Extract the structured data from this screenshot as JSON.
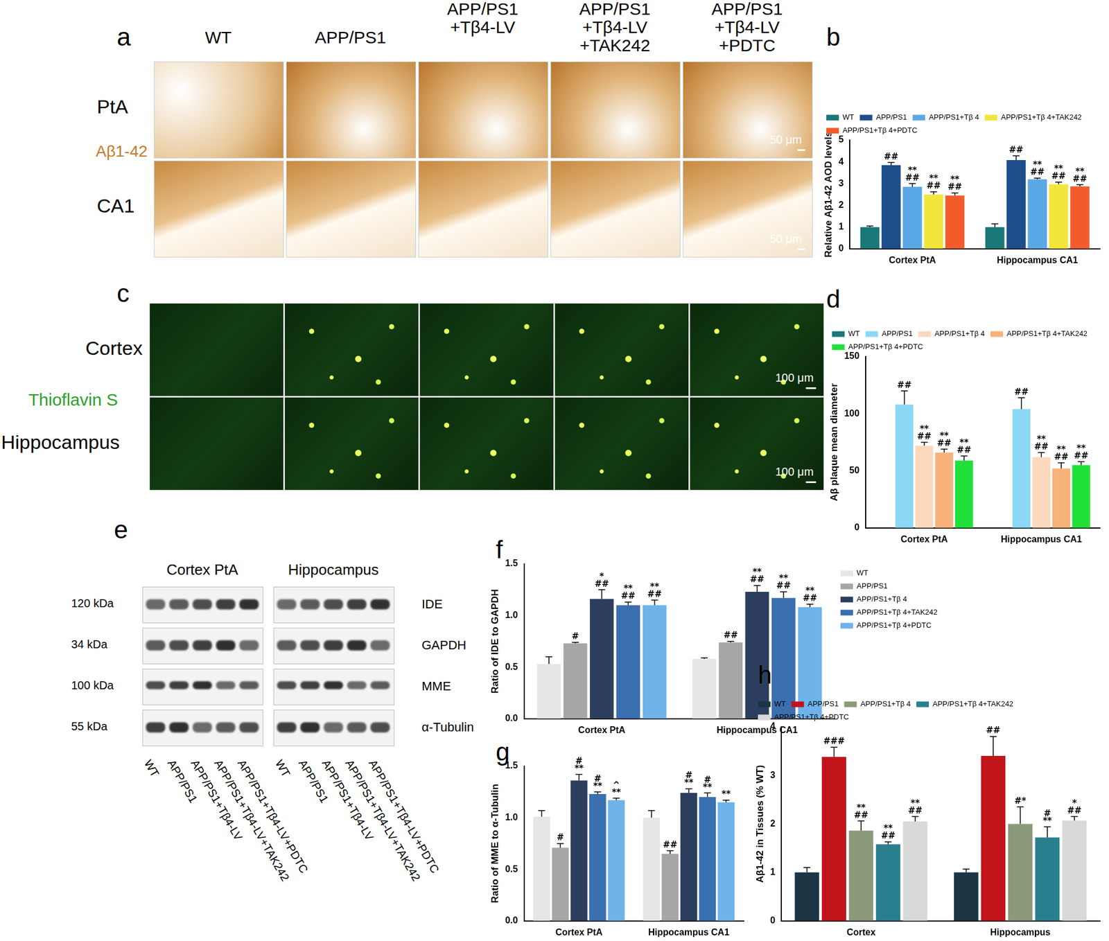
{
  "panels": {
    "a": {
      "panel_label": "a",
      "columns": [
        [
          "WT"
        ],
        [
          "APP/PS1"
        ],
        [
          "APP/PS1",
          "+Tβ4-LV"
        ],
        [
          "APP/PS1",
          "+Tβ4-LV",
          "+TAK242"
        ],
        [
          "APP/PS1",
          "+Tβ4-LV",
          "+PDTC"
        ]
      ],
      "rows": [
        "PtA",
        "CA1"
      ],
      "stain": "Aβ1-42",
      "scale_bar": "50 μm"
    },
    "c": {
      "panel_label": "c",
      "rows": [
        "Cortex",
        "Hippocampus"
      ],
      "stain": "Thioflavin S",
      "scale_bar": "100 μm"
    },
    "e": {
      "panel_label": "e",
      "groups": [
        "Cortex PtA",
        "Hippocampus"
      ],
      "rows": [
        {
          "kda": "120 kDa",
          "protein": "IDE"
        },
        {
          "kda": "34  kDa",
          "protein": "GAPDH"
        },
        {
          "kda": "100 kDa",
          "protein": "MME"
        },
        {
          "kda": "55 kDa",
          "protein": "α-Tubulin"
        }
      ],
      "lanes": [
        "WT",
        "APP/PS1",
        "APP/PS1+Tβ4-LV",
        "APP/PS1+Tβ4-LV+TAK242",
        "APP/PS1+Tβ4-LV+PDTC"
      ]
    }
  },
  "chart_data": [
    {
      "type": "bar",
      "panel_label": "b",
      "y_label": "Relative Aβ1-42 AOD levels",
      "categories": [
        "Cortex PtA",
        "Hippocampus CA1"
      ],
      "ylim": [
        0,
        5
      ],
      "yticks": [
        0,
        1,
        2,
        3,
        4,
        5
      ],
      "grid": false,
      "legend": "top",
      "series": [
        {
          "name": "WT",
          "color": "#1a7878",
          "values": [
            1.0,
            1.0
          ],
          "errors": [
            0.05,
            0.15
          ],
          "significance": [
            null,
            null
          ]
        },
        {
          "name": "APP/PS1",
          "color": "#1f4e8c",
          "values": [
            3.85,
            4.08
          ],
          "errors": [
            0.12,
            0.2
          ],
          "significance": [
            [
              "##"
            ],
            [
              "##"
            ]
          ]
        },
        {
          "name": "APP/PS1+Tβ 4",
          "color": "#5aa9e6",
          "values": [
            2.85,
            3.2
          ],
          "errors": [
            0.15,
            0.05
          ],
          "significance": [
            [
              "**",
              "##"
            ],
            [
              "**",
              "##"
            ]
          ]
        },
        {
          "name": "APP/PS1+Tβ 4+TAK242",
          "color": "#f2e63c",
          "values": [
            2.5,
            2.97
          ],
          "errors": [
            0.12,
            0.1
          ],
          "significance": [
            [
              "**",
              "##"
            ],
            [
              "**",
              "##"
            ]
          ]
        },
        {
          "name": "APP/PS1+Tβ 4+PDTC",
          "color": "#f25c2a",
          "values": [
            2.45,
            2.87
          ],
          "errors": [
            0.12,
            0.08
          ],
          "significance": [
            [
              "**",
              "##"
            ],
            [
              "**",
              "##"
            ]
          ]
        }
      ]
    },
    {
      "type": "bar",
      "panel_label": "d",
      "y_label": "Aβ plaque mean diameter",
      "categories": [
        "Cortex PtA",
        "Hippocampus CA1"
      ],
      "ylim": [
        0,
        150
      ],
      "yticks": [
        0,
        50,
        100,
        150
      ],
      "grid": false,
      "legend": "top",
      "series": [
        {
          "name": "WT",
          "color": "#1a7878",
          "values": [
            null,
            null
          ],
          "errors": [
            null,
            null
          ],
          "significance": [
            null,
            null
          ]
        },
        {
          "name": "APP/PS1",
          "color": "#8ad8f5",
          "values": [
            108,
            104
          ],
          "errors": [
            12,
            10
          ],
          "significance": [
            [
              "##"
            ],
            [
              "##"
            ]
          ]
        },
        {
          "name": "APP/PS1+Tβ 4",
          "color": "#fcd9bd",
          "values": [
            72,
            62
          ],
          "errors": [
            3,
            4
          ],
          "significance": [
            [
              "**",
              "##"
            ],
            [
              "**",
              "##"
            ]
          ]
        },
        {
          "name": "APP/PS1+Tβ 4+TAK242",
          "color": "#f7b27a",
          "values": [
            66,
            52
          ],
          "errors": [
            3,
            5
          ],
          "significance": [
            [
              "**",
              "##"
            ],
            [
              "**",
              "##"
            ]
          ]
        },
        {
          "name": "APP/PS1+Tβ 4+PDTC",
          "color": "#22e03a",
          "values": [
            59,
            55
          ],
          "errors": [
            4,
            3
          ],
          "significance": [
            [
              "**",
              "##"
            ],
            [
              "**",
              "##"
            ]
          ]
        }
      ]
    },
    {
      "type": "bar",
      "panel_label": "f",
      "y_label": "Ratio of IDE to GAPDH",
      "categories": [
        "Cortex PtA",
        "Hippocampus CA1"
      ],
      "ylim": [
        0,
        1.5
      ],
      "yticks": [
        {
          "value": 0,
          "label": "0.0"
        },
        {
          "value": 0.5,
          "label": "0.5"
        },
        {
          "value": 1,
          "label": "1.0"
        },
        {
          "value": 1.5,
          "label": "1.5"
        }
      ],
      "grid": false,
      "legend": "right",
      "series": [
        {
          "name": "WT",
          "color": "#e6e6e6",
          "values": [
            0.53,
            0.58
          ],
          "errors": [
            0.07,
            0.01
          ],
          "significance": [
            null,
            null
          ]
        },
        {
          "name": "APP/PS1",
          "color": "#a6a6a6",
          "values": [
            0.73,
            0.74
          ],
          "errors": [
            0.01,
            0.01
          ],
          "significance": [
            [
              "#"
            ],
            [
              "##"
            ]
          ]
        },
        {
          "name": "APP/PS1+Tβ 4",
          "color": "#2c3e5e",
          "values": [
            1.16,
            1.23
          ],
          "errors": [
            0.09,
            0.06
          ],
          "significance": [
            [
              "*",
              "##"
            ],
            [
              "**",
              "##"
            ]
          ]
        },
        {
          "name": "APP/PS1+Tβ 4+TAK242",
          "color": "#3a6fb0",
          "values": [
            1.1,
            1.17
          ],
          "errors": [
            0.03,
            0.06
          ],
          "significance": [
            [
              "**",
              "##"
            ],
            [
              "**",
              "##"
            ]
          ]
        },
        {
          "name": "APP/PS1+Tβ 4+PDTC",
          "color": "#6eb3ea",
          "values": [
            1.1,
            1.08
          ],
          "errors": [
            0.05,
            0.03
          ],
          "significance": [
            [
              "**",
              "##"
            ],
            [
              "**",
              "##"
            ]
          ]
        }
      ]
    },
    {
      "type": "bar",
      "panel_label": "g",
      "y_label": "Ratio of MME to α-Tubulin",
      "categories": [
        "Cortex PtA",
        "Hippocampus CA1"
      ],
      "ylim": [
        0,
        1.5
      ],
      "yticks": [
        {
          "value": 0,
          "label": "0.0"
        },
        {
          "value": 0.5,
          "label": "0.5"
        },
        {
          "value": 1,
          "label": "1.0"
        },
        {
          "value": 1.5,
          "label": "1.5"
        }
      ],
      "grid": false,
      "series": [
        {
          "color": "#e6e6e6",
          "values": [
            1.01,
            1.0
          ],
          "errors": [
            0.06,
            0.07
          ],
          "significance": [
            null,
            null
          ]
        },
        {
          "color": "#a6a6a6",
          "values": [
            0.71,
            0.65
          ],
          "errors": [
            0.04,
            0.03
          ],
          "significance": [
            [
              "#"
            ],
            [
              "##"
            ]
          ]
        },
        {
          "color": "#2c3e5e",
          "values": [
            1.36,
            1.24
          ],
          "errors": [
            0.06,
            0.04
          ],
          "significance": [
            [
              "#",
              "**"
            ],
            [
              "#",
              "**"
            ]
          ]
        },
        {
          "color": "#3a6fb0",
          "values": [
            1.23,
            1.2
          ],
          "errors": [
            0.02,
            0.04
          ],
          "significance": [
            [
              "#",
              "**"
            ],
            [
              "#",
              "**"
            ]
          ]
        },
        {
          "color": "#6eb3ea",
          "values": [
            1.17,
            1.15
          ],
          "errors": [
            0.02,
            0.02
          ],
          "significance": [
            [
              "^",
              "**"
            ],
            [
              "**"
            ]
          ]
        }
      ]
    },
    {
      "type": "bar",
      "panel_label": "h",
      "y_label": "Aβ1-42 in Tissues (% WT)",
      "categories": [
        "Cortex",
        "Hippocampus"
      ],
      "ylim": [
        0,
        4
      ],
      "yticks": [
        0,
        1,
        2,
        3,
        4
      ],
      "grid": false,
      "legend": "top",
      "series": [
        {
          "name": "WT",
          "color": "#1c3444",
          "values": [
            1.0,
            1.0
          ],
          "errors": [
            0.1,
            0.07
          ],
          "significance": [
            null,
            null
          ]
        },
        {
          "name": "APP/PS1",
          "color": "#c0141a",
          "values": [
            3.38,
            3.4
          ],
          "errors": [
            0.2,
            0.4
          ],
          "significance": [
            [
              "###"
            ],
            [
              "##"
            ]
          ]
        },
        {
          "name": "APP/PS1+Tβ 4",
          "color": "#8a9a7a",
          "values": [
            1.86,
            2.0
          ],
          "errors": [
            0.2,
            0.35
          ],
          "significance": [
            [
              "**",
              "##"
            ],
            [
              "#*"
            ]
          ]
        },
        {
          "name": "APP/PS1+Tβ 4+TAK242",
          "color": "#2a7f8f",
          "values": [
            1.58,
            1.72
          ],
          "errors": [
            0.05,
            0.22
          ],
          "significance": [
            [
              "**",
              "##"
            ],
            [
              "#",
              "**"
            ]
          ]
        },
        {
          "name": "APP/PS1+Tβ 4+PDTC",
          "color": "#d9d9d9",
          "values": [
            2.05,
            2.07
          ],
          "errors": [
            0.1,
            0.08
          ],
          "significance": [
            [
              "**",
              "##"
            ],
            [
              "*",
              "##"
            ]
          ]
        }
      ]
    }
  ]
}
